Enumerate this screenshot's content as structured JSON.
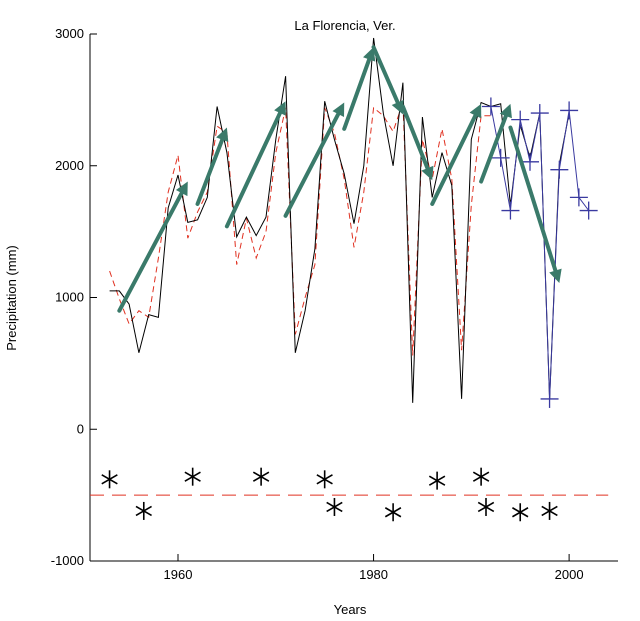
{
  "chart_data": {
    "type": "line",
    "title": "La Florencia, Ver.",
    "xlabel": "Years",
    "ylabel": "Precipitation (mm)",
    "xlim": [
      1951,
      2005
    ],
    "ylim": [
      -1000,
      3000
    ],
    "xticks": [
      1960,
      1980,
      2000
    ],
    "yticks": [
      -1000,
      0,
      1000,
      2000,
      3000
    ],
    "grid": false,
    "series": [
      {
        "x": [
          1953,
          1954,
          1955,
          1956,
          1957,
          1958,
          1959,
          1960,
          1961,
          1962,
          1963,
          1964,
          1965,
          1966,
          1967,
          1968,
          1969,
          1970,
          1971,
          1972,
          1973,
          1974,
          1975,
          1976,
          1977,
          1978,
          1979,
          1980,
          1981,
          1982,
          1983,
          1984,
          1985,
          1986,
          1987,
          1988,
          1989,
          1990,
          1991,
          1992,
          1993,
          1994,
          1995,
          1996,
          1997,
          1998,
          1999,
          2000
        ],
        "values": [
          1050,
          1050,
          950,
          580,
          870,
          850,
          1680,
          1930,
          1570,
          1590,
          1760,
          2450,
          2100,
          1460,
          1610,
          1470,
          1610,
          2200,
          2680,
          580,
          900,
          1370,
          2490,
          2200,
          1940,
          1560,
          2000,
          2970,
          2400,
          2000,
          2630,
          200,
          2370,
          1760,
          2100,
          1850,
          230,
          2200,
          2480,
          2450,
          2470,
          1700,
          2310,
          2060,
          2400,
          230,
          2010,
          2400
        ]
      },
      {
        "x": [
          1953,
          1954,
          1955,
          1956,
          1957,
          1958,
          1959,
          1960,
          1961,
          1962,
          1963,
          1964,
          1965,
          1966,
          1967,
          1968,
          1969,
          1970,
          1971,
          1972,
          1973,
          1974,
          1975,
          1976,
          1977,
          1978,
          1979,
          1980,
          1981,
          1982,
          1983,
          1984,
          1985,
          1986,
          1987,
          1988,
          1989,
          1990,
          1991,
          1992
        ],
        "values": [
          1200,
          990,
          800,
          900,
          850,
          1300,
          1800,
          2080,
          1450,
          1650,
          1800,
          2300,
          2250,
          1250,
          1600,
          1300,
          1500,
          2100,
          2440,
          720,
          1000,
          1250,
          2440,
          2250,
          1900,
          1380,
          1800,
          2440,
          2380,
          2260,
          2480,
          560,
          2200,
          1900,
          2280,
          1900,
          600,
          1700,
          2380,
          2380
        ]
      },
      {
        "x": [
          1992,
          1993,
          1994,
          1995,
          1996,
          1997,
          1998,
          1999,
          2000,
          2001,
          2002
        ],
        "values": [
          2450,
          2060,
          1660,
          2350,
          2030,
          2400,
          230,
          1970,
          2420,
          1760,
          1660
        ]
      },
      {
        "x": [
          1953,
          1956.5,
          1961.5,
          1968.5,
          1975,
          1976,
          1982,
          1986.5,
          1991,
          1991.5,
          1995,
          1998
        ],
        "values": [
          -380,
          -620,
          -360,
          -360,
          -380,
          -590,
          -630,
          -390,
          -360,
          -590,
          -630,
          -620
        ]
      },
      {
        "x": [
          1951,
          2004
        ],
        "values": [
          -500,
          -500
        ]
      }
    ],
    "annotations": [
      {
        "x": [
          1954,
          1961
        ],
        "values": [
          900,
          1880
        ]
      },
      {
        "x": [
          1962,
          1965
        ],
        "values": [
          1710,
          2290
        ]
      },
      {
        "x": [
          1965,
          1971
        ],
        "values": [
          1540,
          2490
        ]
      },
      {
        "x": [
          1971,
          1977
        ],
        "values": [
          1620,
          2480
        ]
      },
      {
        "x": [
          1977,
          1980
        ],
        "values": [
          2280,
          2900
        ]
      },
      {
        "x": [
          1980,
          1983
        ],
        "values": [
          2900,
          2390
        ]
      },
      {
        "x": [
          1983,
          1986
        ],
        "values": [
          2450,
          1890
        ]
      },
      {
        "x": [
          1986,
          1991
        ],
        "values": [
          1710,
          2470
        ]
      },
      {
        "x": [
          1991,
          1994
        ],
        "values": [
          1880,
          2470
        ]
      },
      {
        "x": [
          1994,
          1999
        ],
        "values": [
          2290,
          1110
        ]
      }
    ],
    "colors": {
      "observed": "#000000",
      "modeled": "#e03020",
      "forecast": "#3a3aa0",
      "arrows": "#3a7a6a",
      "stars": "#000000",
      "threshold": "#e03020"
    }
  }
}
